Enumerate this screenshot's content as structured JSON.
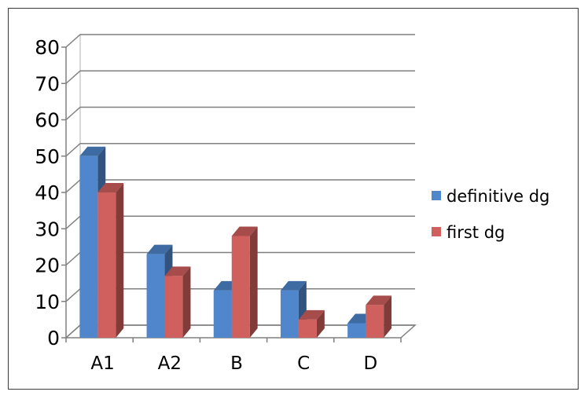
{
  "chart_data": {
    "type": "bar",
    "categories": [
      "A1",
      "A2",
      "B",
      "C",
      "D"
    ],
    "series": [
      {
        "name": "definitive dg",
        "values": [
          50,
          23,
          13,
          13,
          4
        ]
      },
      {
        "name": "first dg",
        "values": [
          40,
          17,
          28,
          5,
          9
        ]
      }
    ],
    "title": "",
    "xlabel": "",
    "ylabel": "",
    "ylim": [
      0,
      80
    ],
    "yticks": [
      0,
      10,
      20,
      30,
      40,
      50,
      60,
      70,
      80
    ],
    "grid": true,
    "legend_position": "right",
    "style": "3d-column",
    "colors": {
      "definitive dg": "#4f86cc",
      "first dg": "#d0605e"
    }
  }
}
